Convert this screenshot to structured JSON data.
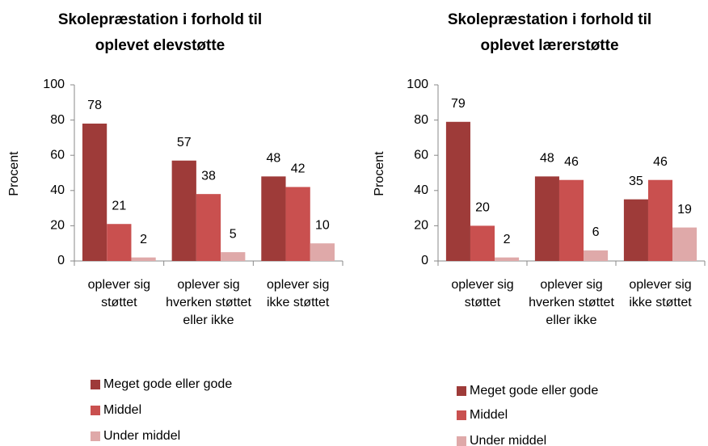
{
  "chart_data": [
    {
      "type": "bar",
      "title_lines": [
        "Skolepræstation i forhold til",
        "oplevet elevstøtte"
      ],
      "ylabel": "Procent",
      "categories": [
        "oplever sig støttet",
        "oplever sig hverken støttet eller ikke",
        "oplever sig ikke støttet"
      ],
      "series": [
        {
          "name": "Meget gode eller gode",
          "color": "#9e3b39",
          "values": [
            78,
            57,
            48
          ]
        },
        {
          "name": "Middel",
          "color": "#c9504f",
          "values": [
            21,
            38,
            42
          ]
        },
        {
          "name": "Under middel",
          "color": "#dfa9a9",
          "values": [
            2,
            5,
            10
          ]
        }
      ],
      "ylim": [
        0,
        100
      ],
      "yticks": [
        0,
        20,
        40,
        60,
        80,
        100
      ],
      "grid": false,
      "legend": "bottom"
    },
    {
      "type": "bar",
      "title_lines": [
        "Skolepræstation i forhold til",
        "oplevet lærerstøtte"
      ],
      "ylabel": "Procent",
      "categories": [
        "oplever sig støttet",
        "oplever sig hverken støttet eller ikke",
        "oplever sig ikke støttet"
      ],
      "series": [
        {
          "name": "Meget gode eller gode",
          "color": "#9e3b39",
          "values": [
            79,
            48,
            35
          ]
        },
        {
          "name": "Middel",
          "color": "#c9504f",
          "values": [
            20,
            46,
            46
          ]
        },
        {
          "name": "Under middel",
          "color": "#dfa9a9",
          "values": [
            2,
            6,
            19
          ]
        }
      ],
      "ylim": [
        0,
        100
      ],
      "yticks": [
        0,
        20,
        40,
        60,
        80,
        100
      ],
      "grid": false,
      "legend": "bottom"
    }
  ]
}
